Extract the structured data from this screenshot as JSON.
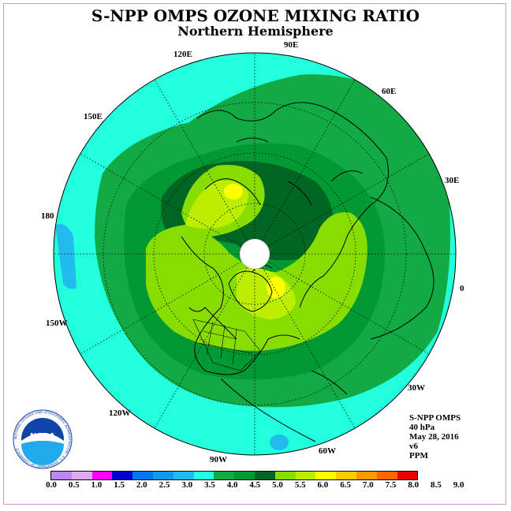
{
  "title": "S-NPP OMPS OZONE MIXING RATIO",
  "subtitle": "Northern Hemisphere",
  "longitude_labels": [
    "90E",
    "60E",
    "30E",
    "0",
    "30W",
    "60W",
    "90W",
    "120W",
    "150W",
    "180",
    "150E",
    "120E"
  ],
  "info": {
    "instrument": "S-NPP OMPS",
    "level": "40 hPa",
    "date": "May 28, 2016",
    "version": "v6",
    "units": "PPM"
  },
  "colorbar": {
    "ticks": [
      "0.0",
      "0.5",
      "1.0",
      "1.5",
      "2.0",
      "2.5",
      "3.0",
      "3.5",
      "4.0",
      "4.5",
      "5.0",
      "5.5",
      "6.0",
      "6.5",
      "7.0",
      "7.5",
      "8.0",
      "8.5",
      "9.0"
    ],
    "colors": [
      "#bb88ee",
      "#ddaaee",
      "#ff00ff",
      "#0000cc",
      "#0077ee",
      "#1199ee",
      "#22bbee",
      "#22ffdd",
      "#11aa44",
      "#009933",
      "#006622",
      "#88dd00",
      "#bbee00",
      "#ffff00",
      "#ffcc00",
      "#ff9900",
      "#ff6600",
      "#ee0000",
      "#885533"
    ]
  },
  "logo_text": "NOAA",
  "logo_ring_text": "NATIONAL OCEANIC AND ATMOSPHERIC ADMINISTRATION · U.S. DEPARTMENT OF COMMERCE"
}
